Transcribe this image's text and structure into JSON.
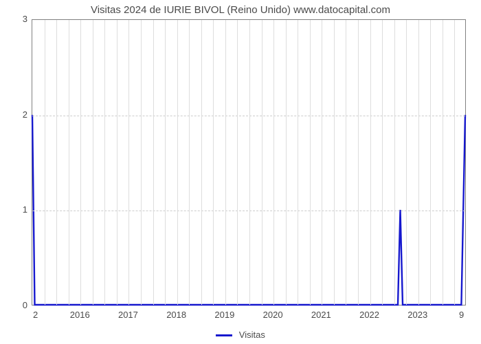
{
  "chart": {
    "type": "line",
    "title": "Visitas 2024 de IURIE BIVOL (Reino Unido) www.datocapital.com",
    "title_fontsize": 15,
    "title_color": "#4a4a4a",
    "background_color": "#ffffff",
    "plot_border_color": "#808080",
    "grid_color_major": "#cccccc",
    "grid_color_minor": "#dddddd",
    "x": {
      "start_year": 2015.0,
      "end_year": 2024.0,
      "ticks": [
        2016,
        2017,
        2018,
        2019,
        2020,
        2021,
        2022,
        2023
      ],
      "minor_per_year": 4
    },
    "y": {
      "min": 0,
      "max": 3,
      "ticks": [
        0,
        1,
        2,
        3
      ]
    },
    "corner_labels": {
      "bottom_left": "2",
      "bottom_right": "9"
    },
    "series": {
      "name": "Visitas",
      "color": "#1618ce",
      "line_width": 2.4,
      "points": [
        {
          "x": 2015.0,
          "y": 2.0
        },
        {
          "x": 2015.05,
          "y": 0.0
        },
        {
          "x": 2022.6,
          "y": 0.0
        },
        {
          "x": 2022.65,
          "y": 1.0
        },
        {
          "x": 2022.7,
          "y": 0.0
        },
        {
          "x": 2023.92,
          "y": 0.0
        },
        {
          "x": 2024.0,
          "y": 2.0
        }
      ]
    },
    "legend_label": "Visitas"
  }
}
